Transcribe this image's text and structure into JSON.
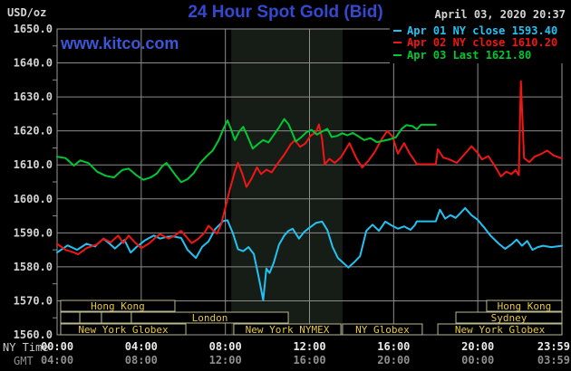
{
  "header": {
    "units": "USD/oz",
    "title": "24 Hour Spot Gold (Bid)",
    "datetime": "April 03, 2020 20:37",
    "watermark": "www.kitco.com"
  },
  "legend": [
    {
      "label": "Apr 01 NY close 1593.40",
      "color": "#22c2f2"
    },
    {
      "label": "Apr 02 NY close 1610.20",
      "color": "#f21515"
    },
    {
      "label": "Apr 03 Last 1621.80",
      "color": "#00c832"
    }
  ],
  "axis_footer": {
    "ny_label": "NY Time",
    "gmt_label": "GMT"
  },
  "colors": {
    "background": "#000000",
    "grid": "#8c8c8c",
    "border": "#9a9a9a",
    "band": "#161d17",
    "session_border": "#b9b98e",
    "session_text": "#e5c83e",
    "tick_text": "#d4d4d4",
    "ny_time_text": "#eaeaea",
    "gmt_time_text": "#8f8f8f"
  },
  "chart_data": {
    "type": "line",
    "title": "24 Hour Spot Gold (Bid)",
    "ylabel": "USD/oz",
    "x_axis": {
      "range_hours": [
        0,
        24
      ],
      "ticks": [
        {
          "h": 0,
          "ny": "00:00",
          "gmt": "04:00"
        },
        {
          "h": 4,
          "ny": "04:00",
          "gmt": "08:00"
        },
        {
          "h": 8,
          "ny": "08:00",
          "gmt": "12:00"
        },
        {
          "h": 12,
          "ny": "12:00",
          "gmt": "16:00"
        },
        {
          "h": 16,
          "ny": "16:00",
          "gmt": "20:00"
        },
        {
          "h": 20,
          "ny": "20:00",
          "gmt": "00:00"
        },
        {
          "h": 23.983,
          "ny": "23:59",
          "gmt": "03:59"
        }
      ]
    },
    "y_axis": {
      "range": [
        1560,
        1650
      ],
      "ticks": [
        {
          "v": 1650,
          "label": "1650.0"
        },
        {
          "v": 1640,
          "label": "1640.0"
        },
        {
          "v": 1630,
          "label": "1630.0"
        },
        {
          "v": 1620,
          "label": "1620.0"
        },
        {
          "v": 1610,
          "label": "1610.0"
        },
        {
          "v": 1600,
          "label": "1600.0"
        },
        {
          "v": 1590,
          "label": "1590.0"
        },
        {
          "v": 1580,
          "label": "1580.0"
        },
        {
          "v": 1570,
          "label": "1570.0"
        },
        {
          "v": 1560,
          "label": "1560.0"
        }
      ],
      "grid": true
    },
    "shaded_band_hours": [
      8.28,
      13.57
    ],
    "sessions": [
      [
        {
          "label": "Hong Kong",
          "start": 0.17,
          "end": 5.6
        },
        {
          "label": "Hong Kong",
          "start": 20.42,
          "end": 24
        }
      ],
      [
        {
          "label": "",
          "start": 0.17,
          "end": 1.08
        },
        {
          "label": "",
          "start": 1.08,
          "end": 2.11
        },
        {
          "label": "",
          "start": 2.11,
          "end": 3.53
        },
        {
          "label": "London",
          "start": 3.53,
          "end": 10.99
        },
        {
          "label": "Sydney",
          "start": 18.96,
          "end": 24
        }
      ],
      [
        {
          "label": "New York Globex",
          "start": 0.17,
          "end": 6.12
        },
        {
          "label": "New York NYMEX",
          "start": 8.4,
          "end": 13.49
        },
        {
          "label": "NY Globex",
          "start": 13.57,
          "end": 17.36
        },
        {
          "label": "New York Globex",
          "start": 18.1,
          "end": 24
        }
      ]
    ],
    "series": [
      {
        "name": "Apr 01",
        "key": "apr01",
        "close_label": "NY close 1593.40",
        "color": "#22c2f2",
        "points": [
          [
            0,
            1584.2
          ],
          [
            0.5,
            1586.3
          ],
          [
            0.95,
            1585.0
          ],
          [
            1.4,
            1586.8
          ],
          [
            1.8,
            1586.0
          ],
          [
            2.2,
            1588.3
          ],
          [
            2.5,
            1586.8
          ],
          [
            2.75,
            1585.4
          ],
          [
            3.2,
            1587.9
          ],
          [
            3.5,
            1584.2
          ],
          [
            3.8,
            1586.0
          ],
          [
            4.2,
            1587.9
          ],
          [
            4.6,
            1589.2
          ],
          [
            4.9,
            1588.3
          ],
          [
            5.2,
            1588.8
          ],
          [
            5.5,
            1589.0
          ],
          [
            5.9,
            1588.5
          ],
          [
            6.2,
            1585.0
          ],
          [
            6.6,
            1582.6
          ],
          [
            6.9,
            1585.9
          ],
          [
            7.2,
            1587.5
          ],
          [
            7.5,
            1591.0
          ],
          [
            7.9,
            1593.5
          ],
          [
            8.1,
            1593.7
          ],
          [
            8.35,
            1590.0
          ],
          [
            8.6,
            1585.2
          ],
          [
            8.85,
            1584.6
          ],
          [
            9.1,
            1585.8
          ],
          [
            9.35,
            1583.8
          ],
          [
            9.6,
            1576.5
          ],
          [
            9.8,
            1570.2
          ],
          [
            9.95,
            1579.5
          ],
          [
            10.1,
            1578.2
          ],
          [
            10.3,
            1581.2
          ],
          [
            10.55,
            1586.5
          ],
          [
            10.8,
            1589.2
          ],
          [
            11.0,
            1590.6
          ],
          [
            11.2,
            1591.2
          ],
          [
            11.5,
            1588.3
          ],
          [
            11.75,
            1590.3
          ],
          [
            12.0,
            1591.5
          ],
          [
            12.3,
            1592.9
          ],
          [
            12.6,
            1593.3
          ],
          [
            12.85,
            1590.8
          ],
          [
            13.1,
            1585.8
          ],
          [
            13.35,
            1582.6
          ],
          [
            13.6,
            1581.2
          ],
          [
            13.85,
            1579.8
          ],
          [
            14.1,
            1581.2
          ],
          [
            14.4,
            1583.1
          ],
          [
            14.7,
            1590.6
          ],
          [
            15.0,
            1592.4
          ],
          [
            15.3,
            1590.6
          ],
          [
            15.6,
            1593.3
          ],
          [
            15.9,
            1592.2
          ],
          [
            16.2,
            1591.2
          ],
          [
            16.5,
            1591.9
          ],
          [
            16.8,
            1590.9
          ],
          [
            17.0,
            1592.2
          ],
          [
            17.1,
            1593.4
          ],
          [
            18.0,
            1593.4
          ],
          [
            18.2,
            1596.8
          ],
          [
            18.45,
            1594.2
          ],
          [
            18.7,
            1595.2
          ],
          [
            18.95,
            1594.4
          ],
          [
            19.2,
            1596.0
          ],
          [
            19.4,
            1597.3
          ],
          [
            19.7,
            1595.2
          ],
          [
            20.0,
            1593.8
          ],
          [
            20.3,
            1591.6
          ],
          [
            20.6,
            1589.2
          ],
          [
            21.0,
            1586.8
          ],
          [
            21.3,
            1585.3
          ],
          [
            21.6,
            1586.6
          ],
          [
            21.85,
            1588.0
          ],
          [
            22.1,
            1586.2
          ],
          [
            22.35,
            1587.6
          ],
          [
            22.6,
            1585.0
          ],
          [
            22.85,
            1585.8
          ],
          [
            23.1,
            1586.2
          ],
          [
            23.5,
            1585.8
          ],
          [
            24,
            1586.2
          ]
        ]
      },
      {
        "name": "Apr 02",
        "key": "apr02",
        "close_label": "NY close 1610.20",
        "color": "#f21515",
        "points": [
          [
            0,
            1586.8
          ],
          [
            0.4,
            1585.0
          ],
          [
            0.8,
            1584.2
          ],
          [
            1.0,
            1583.7
          ],
          [
            1.4,
            1585.5
          ],
          [
            1.9,
            1586.6
          ],
          [
            2.2,
            1588.3
          ],
          [
            2.55,
            1587.2
          ],
          [
            2.9,
            1589.2
          ],
          [
            3.15,
            1587.0
          ],
          [
            3.4,
            1589.2
          ],
          [
            3.7,
            1587.2
          ],
          [
            4.0,
            1585.5
          ],
          [
            4.35,
            1586.8
          ],
          [
            4.7,
            1588.7
          ],
          [
            4.9,
            1589.6
          ],
          [
            5.3,
            1588.3
          ],
          [
            5.6,
            1589.2
          ],
          [
            5.9,
            1590.6
          ],
          [
            6.15,
            1588.8
          ],
          [
            6.4,
            1587.0
          ],
          [
            6.7,
            1588.2
          ],
          [
            7.0,
            1590.0
          ],
          [
            7.2,
            1592.1
          ],
          [
            7.45,
            1590.5
          ],
          [
            7.6,
            1589.8
          ],
          [
            7.8,
            1592.5
          ],
          [
            8.0,
            1597.5
          ],
          [
            8.2,
            1602.5
          ],
          [
            8.45,
            1608.0
          ],
          [
            8.6,
            1610.6
          ],
          [
            8.8,
            1607.5
          ],
          [
            9.0,
            1603.5
          ],
          [
            9.25,
            1606.0
          ],
          [
            9.5,
            1609.3
          ],
          [
            9.7,
            1607.3
          ],
          [
            9.95,
            1608.6
          ],
          [
            10.2,
            1607.8
          ],
          [
            10.5,
            1610.5
          ],
          [
            10.8,
            1613.0
          ],
          [
            11.1,
            1616.0
          ],
          [
            11.3,
            1617.3
          ],
          [
            11.55,
            1615.3
          ],
          [
            11.8,
            1616.3
          ],
          [
            12.05,
            1618.6
          ],
          [
            12.3,
            1619.6
          ],
          [
            12.45,
            1621.9
          ],
          [
            12.6,
            1617.5
          ],
          [
            12.72,
            1610.1
          ],
          [
            12.95,
            1611.8
          ],
          [
            13.2,
            1610.6
          ],
          [
            13.5,
            1612.3
          ],
          [
            13.9,
            1616.4
          ],
          [
            14.2,
            1612.3
          ],
          [
            14.5,
            1609.2
          ],
          [
            14.8,
            1611.2
          ],
          [
            15.1,
            1613.8
          ],
          [
            15.45,
            1617.8
          ],
          [
            15.7,
            1620.0
          ],
          [
            15.95,
            1618.3
          ],
          [
            16.2,
            1613.3
          ],
          [
            16.5,
            1616.4
          ],
          [
            16.75,
            1613.5
          ],
          [
            17.0,
            1611.2
          ],
          [
            17.1,
            1610.2
          ],
          [
            18.0,
            1610.2
          ],
          [
            18.1,
            1614.6
          ],
          [
            18.35,
            1612.2
          ],
          [
            18.65,
            1611.6
          ],
          [
            19.0,
            1610.6
          ],
          [
            19.35,
            1613.0
          ],
          [
            19.7,
            1615.5
          ],
          [
            20.0,
            1613.5
          ],
          [
            20.2,
            1611.6
          ],
          [
            20.5,
            1612.6
          ],
          [
            20.8,
            1609.8
          ],
          [
            21.1,
            1606.6
          ],
          [
            21.35,
            1608.0
          ],
          [
            21.6,
            1607.3
          ],
          [
            21.8,
            1608.5
          ],
          [
            21.95,
            1607.0
          ],
          [
            22.05,
            1634.6
          ],
          [
            22.2,
            1612.0
          ],
          [
            22.45,
            1610.8
          ],
          [
            22.7,
            1612.4
          ],
          [
            23.0,
            1613.2
          ],
          [
            23.3,
            1614.2
          ],
          [
            23.6,
            1612.8
          ],
          [
            24,
            1611.9
          ]
        ]
      },
      {
        "name": "Apr 03",
        "key": "apr03",
        "close_label": "Last 1621.80",
        "color": "#00c832",
        "points": [
          [
            0,
            1612.4
          ],
          [
            0.4,
            1612.0
          ],
          [
            0.8,
            1609.8
          ],
          [
            1.1,
            1611.3
          ],
          [
            1.5,
            1610.5
          ],
          [
            1.9,
            1608.0
          ],
          [
            2.3,
            1606.8
          ],
          [
            2.7,
            1606.3
          ],
          [
            3.1,
            1608.5
          ],
          [
            3.4,
            1608.9
          ],
          [
            3.8,
            1606.8
          ],
          [
            4.1,
            1605.6
          ],
          [
            4.45,
            1606.3
          ],
          [
            4.75,
            1607.5
          ],
          [
            5.0,
            1609.6
          ],
          [
            5.2,
            1610.6
          ],
          [
            5.6,
            1607.2
          ],
          [
            5.9,
            1604.9
          ],
          [
            6.2,
            1605.8
          ],
          [
            6.5,
            1607.6
          ],
          [
            6.8,
            1610.5
          ],
          [
            7.1,
            1612.5
          ],
          [
            7.4,
            1614.2
          ],
          [
            7.7,
            1617.5
          ],
          [
            7.9,
            1620.5
          ],
          [
            8.1,
            1623.1
          ],
          [
            8.25,
            1620.8
          ],
          [
            8.45,
            1617.3
          ],
          [
            8.65,
            1619.8
          ],
          [
            8.85,
            1621.2
          ],
          [
            9.05,
            1618.5
          ],
          [
            9.3,
            1614.8
          ],
          [
            9.55,
            1616.1
          ],
          [
            9.8,
            1617.3
          ],
          [
            10.05,
            1616.6
          ],
          [
            10.3,
            1618.8
          ],
          [
            10.55,
            1621.0
          ],
          [
            10.8,
            1623.5
          ],
          [
            11.0,
            1622.0
          ],
          [
            11.15,
            1619.8
          ],
          [
            11.35,
            1616.9
          ],
          [
            11.6,
            1618.1
          ],
          [
            11.85,
            1619.6
          ],
          [
            12.1,
            1620.3
          ],
          [
            12.35,
            1618.9
          ],
          [
            12.6,
            1619.8
          ],
          [
            12.85,
            1620.6
          ],
          [
            13.05,
            1618.2
          ],
          [
            13.3,
            1618.5
          ],
          [
            13.55,
            1619.3
          ],
          [
            13.8,
            1618.7
          ],
          [
            14.05,
            1619.4
          ],
          [
            14.3,
            1618.5
          ],
          [
            14.6,
            1617.3
          ],
          [
            14.9,
            1617.9
          ],
          [
            15.2,
            1616.7
          ],
          [
            15.5,
            1617.1
          ],
          [
            15.8,
            1617.5
          ],
          [
            16.1,
            1618.1
          ],
          [
            16.4,
            1620.7
          ],
          [
            16.6,
            1621.7
          ],
          [
            16.9,
            1621.4
          ],
          [
            17.1,
            1620.5
          ],
          [
            17.3,
            1621.8
          ],
          [
            18.0,
            1621.8
          ]
        ]
      }
    ]
  }
}
